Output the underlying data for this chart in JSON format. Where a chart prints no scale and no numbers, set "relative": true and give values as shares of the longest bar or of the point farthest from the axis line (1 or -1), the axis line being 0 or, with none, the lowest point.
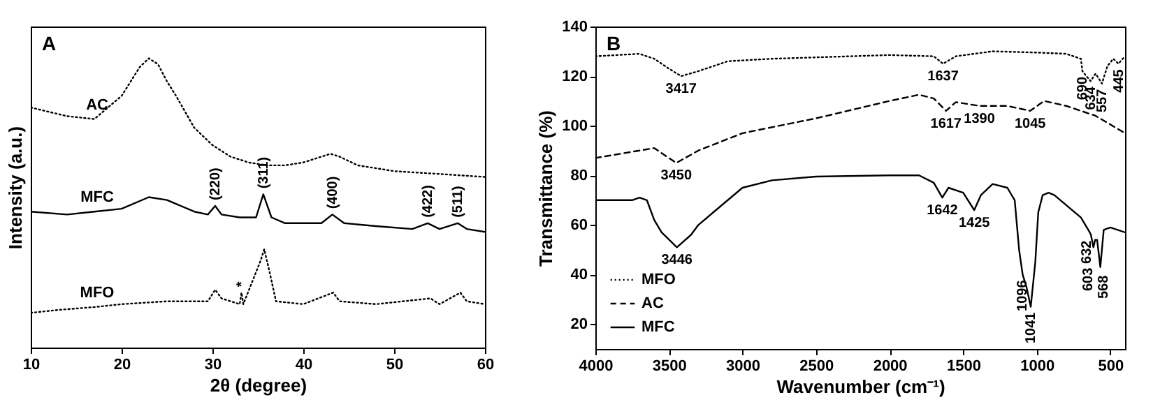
{
  "chart_data": [
    {
      "type": "line",
      "relative": true,
      "xlabel": "2θ (degree)",
      "ylabel": "Intensity (a.u.)",
      "xlim": [
        10,
        60
      ],
      "xticks": [
        10,
        20,
        30,
        40,
        50,
        60
      ],
      "tick_labels": "x",
      "legend": false,
      "grid": false,
      "annotations": [
        "A",
        {
          "text": "(220)",
          "x": 30.3,
          "y": 0.49
        },
        {
          "text": "(311)",
          "x": 35.6,
          "y": 0.53
        },
        {
          "text": "(400)",
          "x": 43.2,
          "y": 0.46
        },
        {
          "text": "(422)",
          "x": 53.7,
          "y": 0.43
        },
        {
          "text": "(511)",
          "x": 57,
          "y": 0.43
        },
        {
          "text": "*",
          "x": 33.2,
          "y": 0.19
        }
      ],
      "series": [
        {
          "name": "AC",
          "color": "#000000",
          "line_style": "dotted",
          "x": [
            10,
            14,
            17,
            20,
            22,
            23,
            24,
            25,
            26,
            28,
            30,
            32,
            34,
            36,
            38,
            40,
            42,
            43,
            44,
            46,
            50,
            55,
            60
          ],
          "values": [
            0.83,
            0.8,
            0.79,
            0.87,
            0.97,
            1,
            0.98,
            0.92,
            0.87,
            0.76,
            0.7,
            0.66,
            0.64,
            0.63,
            0.63,
            0.64,
            0.66,
            0.67,
            0.66,
            0.63,
            0.61,
            0.6,
            0.59
          ]
        },
        {
          "name": "MFC",
          "color": "#000000",
          "line_style": "solid",
          "x": [
            10,
            14,
            17,
            20,
            23,
            25,
            28,
            29.5,
            30.3,
            31,
            33,
            34.8,
            35.6,
            36.5,
            38,
            40,
            42,
            43.2,
            44.5,
            48,
            52,
            53.7,
            55,
            57,
            58,
            60
          ],
          "values": [
            0.47,
            0.46,
            0.47,
            0.48,
            0.52,
            0.51,
            0.47,
            0.46,
            0.49,
            0.46,
            0.45,
            0.45,
            0.53,
            0.45,
            0.43,
            0.43,
            0.43,
            0.46,
            0.43,
            0.42,
            0.41,
            0.43,
            0.41,
            0.43,
            0.41,
            0.4
          ]
        },
        {
          "name": "MFO",
          "color": "#000000",
          "line_style": "dotted",
          "x": [
            10,
            13,
            17,
            20,
            25,
            29.5,
            30.3,
            31,
            33,
            33.2,
            33.4,
            35.3,
            35.7,
            36.3,
            37,
            40,
            43.3,
            44,
            48,
            54,
            55,
            57.3,
            58,
            60
          ],
          "values": [
            0.12,
            0.13,
            0.14,
            0.15,
            0.16,
            0.16,
            0.2,
            0.17,
            0.15,
            0.19,
            0.15,
            0.3,
            0.34,
            0.26,
            0.16,
            0.15,
            0.19,
            0.16,
            0.15,
            0.17,
            0.15,
            0.19,
            0.16,
            0.15
          ]
        }
      ]
    },
    {
      "type": "line",
      "xlabel": "Wavenumber (cm⁻¹)",
      "ylabel": "Transmittance (%)",
      "xlim": [
        4000,
        400
      ],
      "xticks": [
        4000,
        3500,
        3000,
        2500,
        2000,
        1500,
        1000,
        500
      ],
      "ylim": [
        10,
        140
      ],
      "yticks": [
        20,
        40,
        60,
        80,
        100,
        120,
        140
      ],
      "legend": "bottom left",
      "grid": false,
      "annotations": [
        "B",
        {
          "text": "3417",
          "x": 3417,
          "y": 120
        },
        {
          "text": "1637",
          "x": 1637,
          "y": 125
        },
        {
          "text": "690",
          "x": 690,
          "y": 122
        },
        {
          "text": "634",
          "x": 634,
          "y": 118
        },
        {
          "text": "557",
          "x": 557,
          "y": 117
        },
        {
          "text": "445",
          "x": 445,
          "y": 125
        },
        {
          "text": "3450",
          "x": 3450,
          "y": 85
        },
        {
          "text": "1617",
          "x": 1617,
          "y": 106
        },
        {
          "text": "1390",
          "x": 1390,
          "y": 108
        },
        {
          "text": "1045",
          "x": 1045,
          "y": 106
        },
        {
          "text": "1642",
          "x": 1642,
          "y": 71
        },
        {
          "text": "1425",
          "x": 1425,
          "y": 66
        },
        {
          "text": "3446",
          "x": 3446,
          "y": 51
        },
        {
          "text": "1096",
          "x": 1096,
          "y": 40
        },
        {
          "text": "1041",
          "x": 1041,
          "y": 27
        },
        {
          "text": "632",
          "x": 632,
          "y": 56
        },
        {
          "text": "603",
          "x": 603,
          "y": 54
        },
        {
          "text": "568",
          "x": 568,
          "y": 43
        }
      ],
      "series": [
        {
          "name": "MFO",
          "color": "#000000",
          "line_style": "dotted",
          "x": [
            4000,
            3700,
            3600,
            3500,
            3417,
            3300,
            3100,
            2800,
            2000,
            1700,
            1637,
            1550,
            1300,
            1000,
            800,
            700,
            690,
            634,
            600,
            557,
            520,
            480,
            445,
            400
          ],
          "values": [
            128,
            129,
            127,
            123,
            120,
            122,
            126,
            127,
            128.5,
            128,
            125,
            128,
            130,
            129.5,
            129,
            127,
            122,
            118,
            121,
            117,
            124,
            127,
            125,
            128
          ]
        },
        {
          "name": "AC",
          "color": "#000000",
          "line_style": "dashed",
          "x": [
            4000,
            3600,
            3450,
            3300,
            3000,
            2500,
            2000,
            1800,
            1700,
            1617,
            1550,
            1390,
            1200,
            1045,
            950,
            800,
            600,
            400
          ],
          "values": [
            87,
            91,
            85,
            90,
            97,
            103,
            110,
            112.5,
            111,
            106,
            109.5,
            108,
            108,
            106,
            110,
            108,
            104,
            97
          ]
        },
        {
          "name": "MFC",
          "color": "#000000",
          "line_style": "solid",
          "x": [
            4000,
            3750,
            3700,
            3650,
            3600,
            3550,
            3446,
            3350,
            3300,
            3200,
            3100,
            3000,
            2800,
            2500,
            2000,
            1800,
            1700,
            1642,
            1600,
            1500,
            1425,
            1380,
            1300,
            1200,
            1150,
            1120,
            1096,
            1070,
            1041,
            1010,
            990,
            960,
            920,
            880,
            800,
            700,
            640,
            632,
            615,
            603,
            590,
            568,
            545,
            500,
            400
          ],
          "values": [
            70,
            70,
            71,
            70,
            62,
            57,
            51,
            56,
            60,
            65,
            70,
            75,
            78,
            79.5,
            80,
            80,
            77,
            71,
            75,
            73,
            66,
            72,
            76.5,
            75,
            70,
            50,
            40,
            35,
            27,
            45,
            65,
            72,
            73,
            72,
            68,
            63,
            57,
            56,
            51,
            54,
            54,
            43,
            58,
            59,
            57
          ]
        }
      ]
    }
  ]
}
